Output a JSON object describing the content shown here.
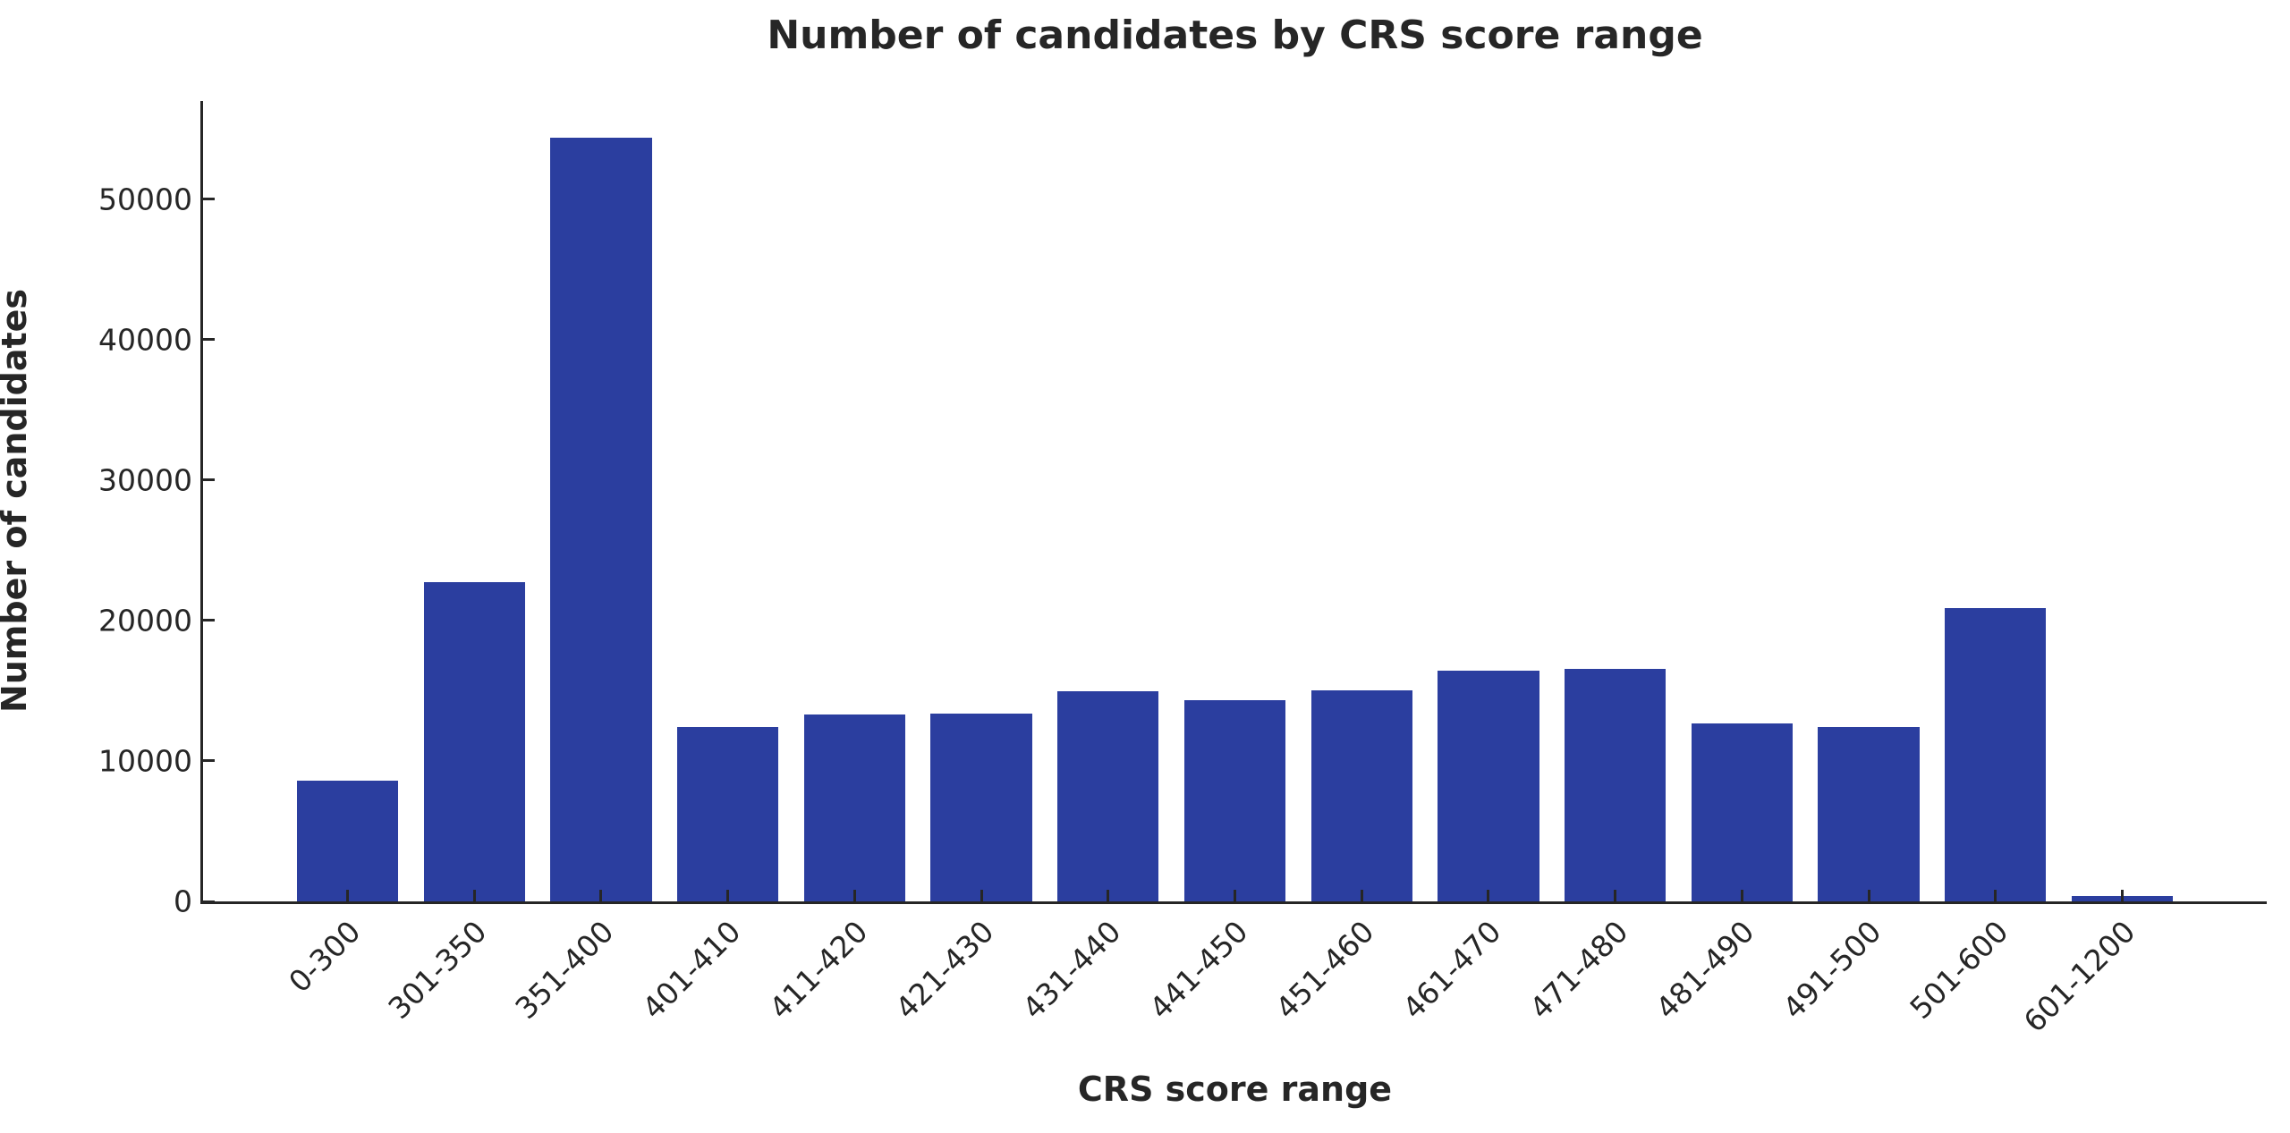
{
  "chart_data": {
    "type": "bar",
    "title": "Number of candidates by CRS score range",
    "xlabel": "CRS score range",
    "ylabel": "Number of candidates",
    "categories": [
      "0-300",
      "301-350",
      "351-400",
      "401-410",
      "411-420",
      "421-430",
      "431-440",
      "441-450",
      "451-460",
      "461-470",
      "471-480",
      "481-490",
      "491-500",
      "501-600",
      "601-1200"
    ],
    "values": [
      8600,
      22750,
      54400,
      12450,
      13300,
      13400,
      14950,
      14350,
      15050,
      16450,
      16550,
      12650,
      12400,
      20900,
      400
    ],
    "ylim": [
      0,
      57000
    ],
    "yticks": [
      0,
      10000,
      20000,
      30000,
      40000,
      50000
    ],
    "grid": "off",
    "legend": "none",
    "bar_color": "#2b3e9f",
    "axis_color": "#262626",
    "background_color": "#ffffff"
  }
}
